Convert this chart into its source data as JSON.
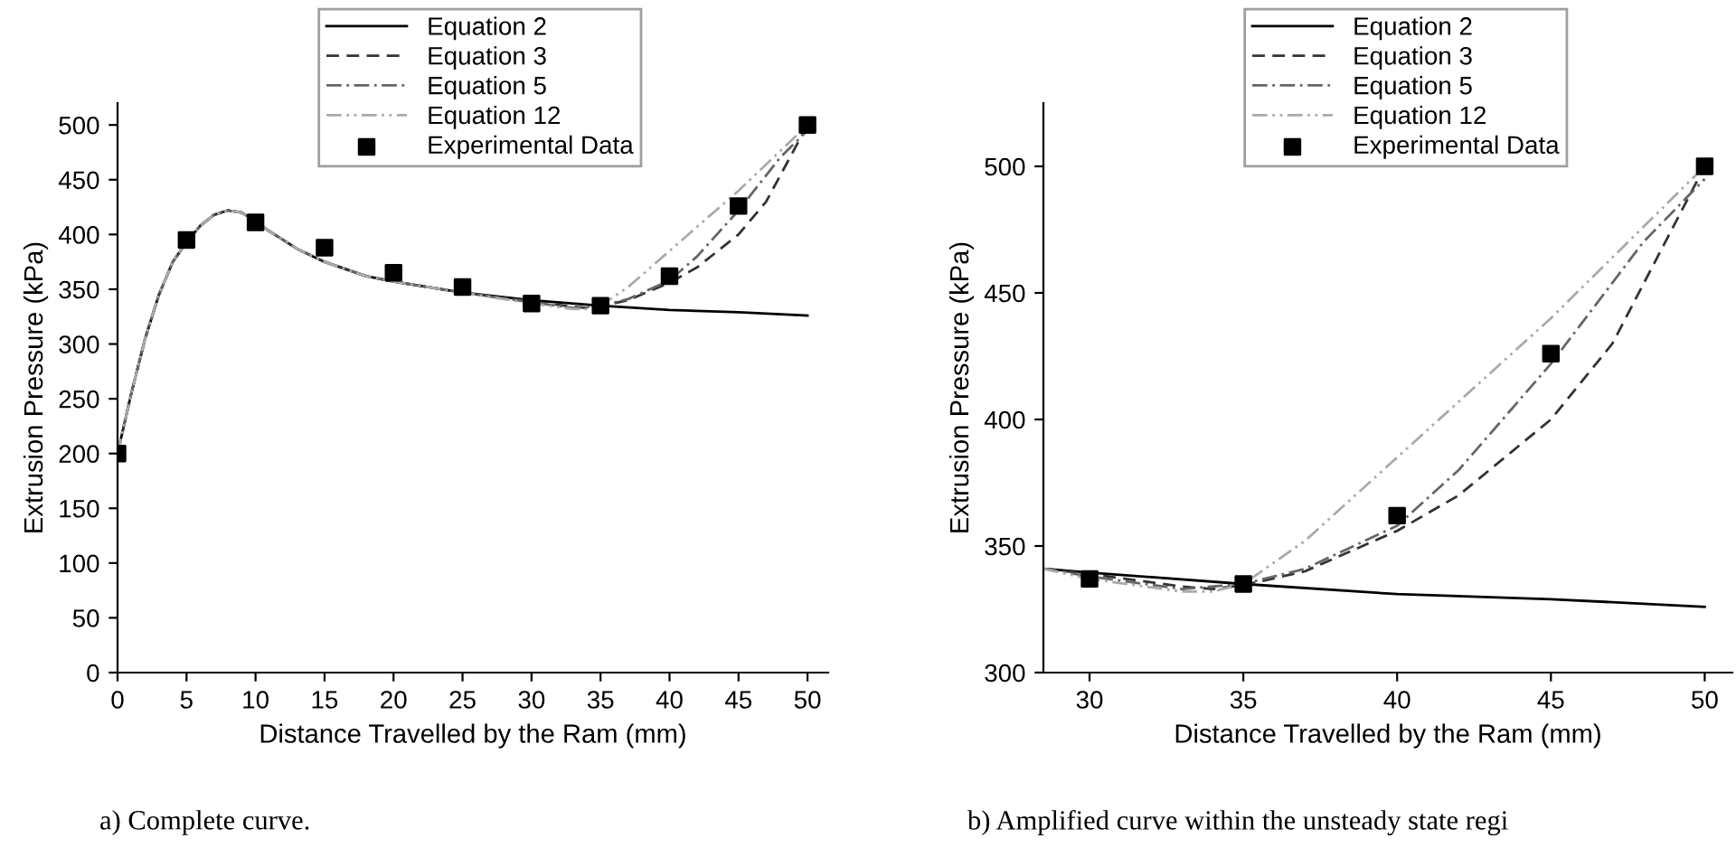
{
  "chart_data": [
    {
      "type": "line",
      "xlabel": "Distance Travelled by the Ram (mm)",
      "ylabel": "Extrusion Pressure (kPa)",
      "xlim": [
        0,
        51.5
      ],
      "ylim": [
        0,
        520
      ],
      "xticks": [
        0,
        5,
        10,
        15,
        20,
        25,
        30,
        35,
        40,
        45,
        50
      ],
      "yticks": [
        0,
        50,
        100,
        150,
        200,
        250,
        300,
        350,
        400,
        450,
        500
      ],
      "grid": false,
      "legend": "top",
      "annotations": [
        "a) Complete curve."
      ],
      "series": [
        {
          "name": "Equation 2",
          "color": "#000000",
          "line_style": "solid",
          "x": [
            0,
            1,
            2,
            3,
            4,
            5,
            6,
            7,
            8,
            9,
            10,
            11,
            12,
            13,
            15,
            18,
            20,
            25,
            30,
            35,
            40,
            45,
            50
          ],
          "values": [
            200,
            255,
            305,
            345,
            375,
            393,
            408,
            418,
            422,
            420,
            412,
            403,
            395,
            387,
            375,
            362,
            357,
            347,
            340,
            335,
            331,
            329,
            326
          ]
        },
        {
          "name": "Equation 3",
          "color": "#333333",
          "line_style": "dashed",
          "x": [
            0,
            1,
            2,
            3,
            4,
            5,
            6,
            7,
            8,
            9,
            10,
            11,
            12,
            13,
            15,
            18,
            20,
            25,
            30,
            33,
            34,
            35,
            37,
            40,
            42,
            45,
            47,
            50
          ],
          "values": [
            200,
            255,
            305,
            345,
            375,
            393,
            408,
            418,
            422,
            420,
            412,
            403,
            395,
            387,
            375,
            362,
            357,
            347,
            339,
            334,
            333,
            334.5,
            340,
            356,
            370,
            400,
            430,
            500
          ]
        },
        {
          "name": "Equation 5",
          "color": "#666666",
          "line_style": "dashdot",
          "x": [
            0,
            1,
            2,
            3,
            4,
            5,
            6,
            7,
            8,
            9,
            10,
            11,
            12,
            13,
            15,
            18,
            20,
            25,
            30,
            33,
            35,
            37,
            40,
            42,
            45,
            48,
            50
          ],
          "values": [
            200,
            255,
            305,
            345,
            375,
            393,
            408,
            418,
            422,
            420,
            412,
            403,
            395,
            387,
            375,
            362,
            357,
            347,
            338,
            333,
            335,
            341,
            358,
            380,
            422,
            470,
            495
          ]
        },
        {
          "name": "Equation 12",
          "color": "#aaaaaa",
          "line_style": "dashdotdot",
          "x": [
            0,
            1,
            2,
            3,
            4,
            5,
            6,
            7,
            8,
            9,
            10,
            11,
            12,
            13,
            15,
            18,
            20,
            25,
            30,
            33,
            34,
            35,
            37,
            40,
            45,
            50
          ],
          "values": [
            200,
            255,
            305,
            345,
            375,
            393,
            408,
            418,
            422,
            420,
            412,
            403,
            395,
            387,
            375,
            362,
            357,
            347,
            337,
            332,
            332,
            335,
            352,
            385,
            440,
            500
          ]
        },
        {
          "name": "Experimental Data",
          "type": "scatter",
          "marker": "square",
          "color": "#000000",
          "x": [
            0,
            5,
            10,
            15,
            20,
            25,
            30,
            35,
            40,
            45,
            50
          ],
          "values": [
            200,
            395,
            411,
            388,
            365,
            352,
            337,
            335,
            362,
            426,
            500
          ]
        }
      ]
    },
    {
      "type": "line",
      "xlabel": "Distance Travelled by the Ram (mm)",
      "ylabel": "Extrusion Pressure (kPa)",
      "xlim": [
        28.5,
        50.9
      ],
      "ylim": [
        300,
        525
      ],
      "xticks": [
        30,
        35,
        40,
        45,
        50
      ],
      "yticks": [
        300,
        350,
        400,
        450,
        500
      ],
      "grid": false,
      "legend": "top",
      "annotations": [
        "b) Amplified curve within the unsteady state regi"
      ],
      "series": [
        {
          "name": "Equation 2",
          "color": "#000000",
          "line_style": "solid",
          "x": [
            28.5,
            30,
            35,
            40,
            45,
            50
          ],
          "values": [
            341,
            339.5,
            335,
            331,
            329,
            326
          ]
        },
        {
          "name": "Equation 3",
          "color": "#333333",
          "line_style": "dashed",
          "x": [
            28.5,
            30,
            33,
            34,
            35,
            37,
            40,
            42,
            45,
            47,
            50
          ],
          "values": [
            341,
            339,
            334,
            333,
            334.5,
            340,
            356,
            370,
            400,
            430,
            500
          ]
        },
        {
          "name": "Equation 5",
          "color": "#666666",
          "line_style": "dashdot",
          "x": [
            28.5,
            30,
            33,
            35,
            37,
            40,
            42,
            45,
            48,
            50
          ],
          "values": [
            341,
            338,
            333,
            335,
            341,
            358,
            380,
            422,
            470,
            495
          ]
        },
        {
          "name": "Equation 12",
          "color": "#aaaaaa",
          "line_style": "dashdotdot",
          "x": [
            28.5,
            30,
            33,
            34,
            35,
            37,
            40,
            45,
            50
          ],
          "values": [
            341,
            337,
            332,
            332,
            335,
            352,
            385,
            440,
            500
          ]
        },
        {
          "name": "Experimental Data",
          "type": "scatter",
          "marker": "square",
          "color": "#000000",
          "x": [
            30,
            35,
            40,
            45,
            50
          ],
          "values": [
            337,
            335,
            362,
            426,
            500
          ]
        }
      ]
    }
  ]
}
